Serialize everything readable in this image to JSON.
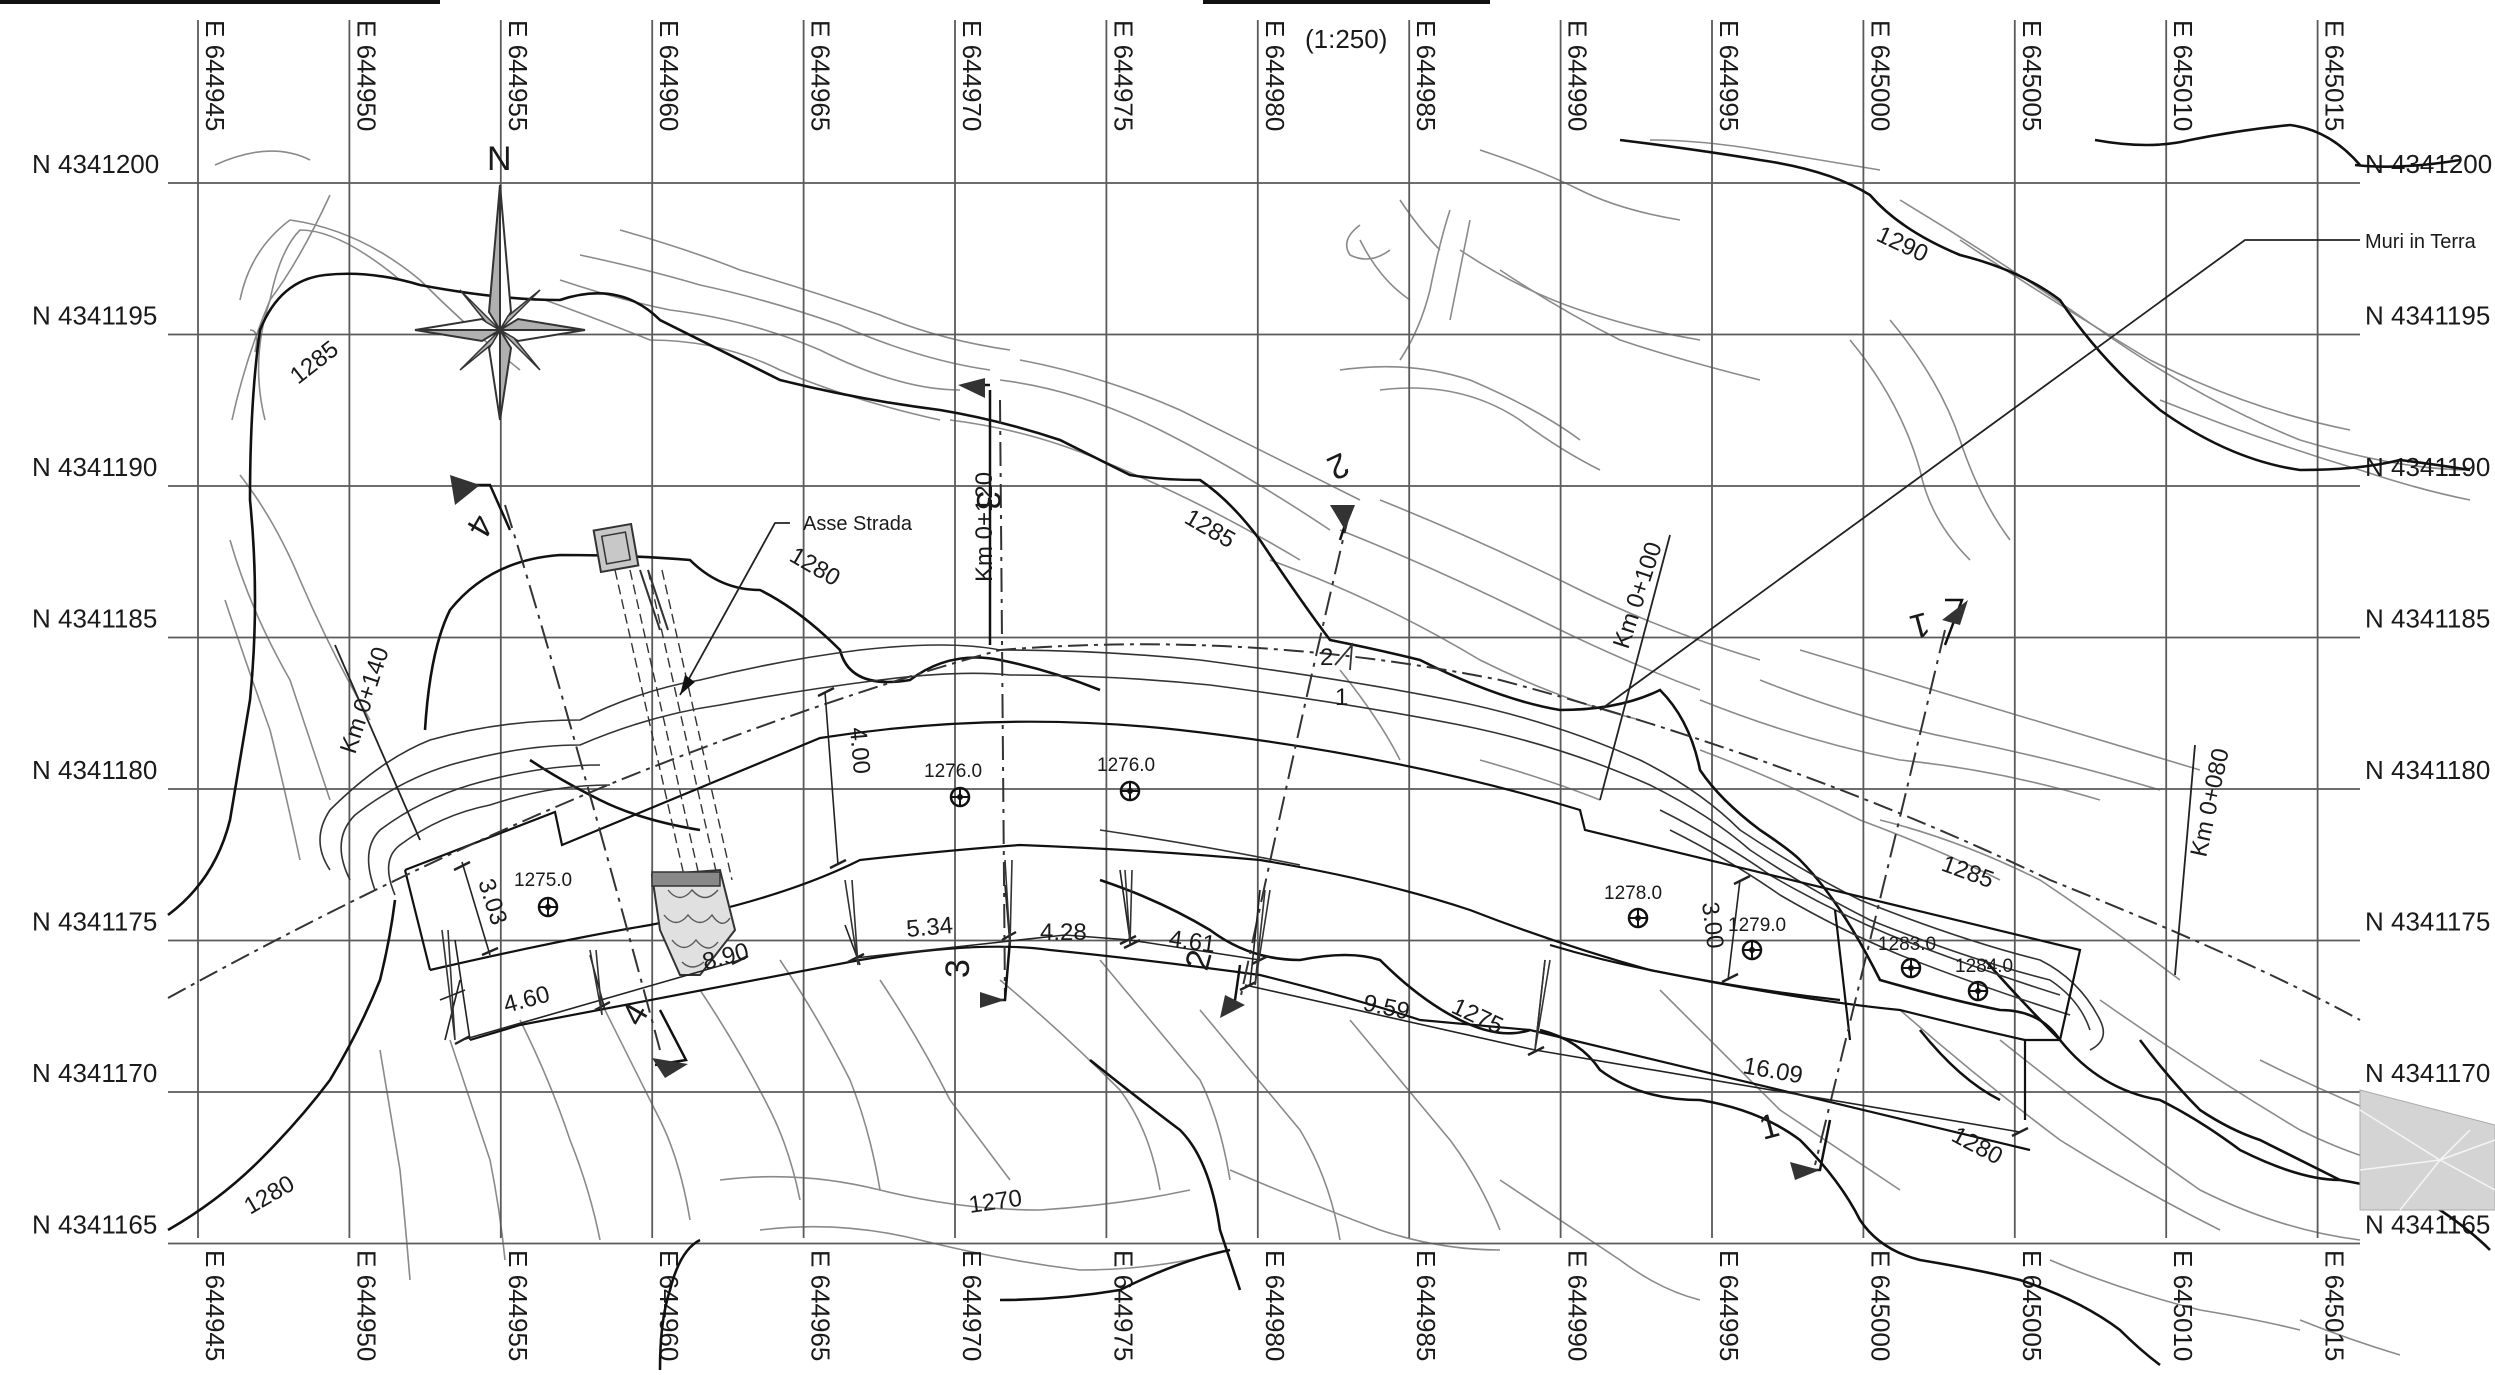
{
  "scale": "(1:250)",
  "easting_labels": [
    "E 644945",
    "E 644950",
    "E 644955",
    "E 644960",
    "E 644965",
    "E 644970",
    "E 644975",
    "E 644980",
    "E 644985",
    "E 644990",
    "E 644995",
    "E 645000",
    "E 645005",
    "E 645010",
    "E 645015"
  ],
  "northing_labels": [
    "N 4341200",
    "N 4341195",
    "N 4341190",
    "N 4341185",
    "N 4341180",
    "N 4341175",
    "N 4341170",
    "N 4341165"
  ],
  "north_arrow": {
    "label": "N",
    "icon": "compass-rose-icon"
  },
  "contour_labels": [
    "1290",
    "1285",
    "1285",
    "1285",
    "1280",
    "1280",
    "1280",
    "1275",
    "1270"
  ],
  "chainage_labels": [
    "Km 0+140",
    "Km 0+120",
    "Km 0+100",
    "Km 0+080"
  ],
  "callouts": {
    "road_axis": "Asse Strada",
    "earth_walls": "Muri in Terra"
  },
  "sections": [
    "1",
    "1",
    "2",
    "2",
    "3",
    "3",
    "4",
    "4"
  ],
  "curb_labels": [
    "1",
    "2"
  ],
  "spot_elevations": [
    "1275.0",
    "1276.0",
    "1276.0",
    "1278.0",
    "1279.0",
    "1283.0",
    "1284.0"
  ],
  "dimensions": [
    "3.03",
    "4.60",
    "8.90",
    "4.00",
    "5.34",
    "4.28",
    "4.61",
    "9.59",
    "16.09",
    "3.00"
  ]
}
